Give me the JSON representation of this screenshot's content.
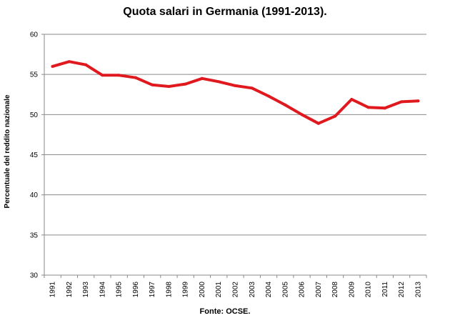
{
  "chart_data": {
    "type": "line",
    "title": "Quota salari in Germania (1991-2013).",
    "xlabel": "",
    "ylabel": "Percentuale del reddito nazionale",
    "source": "Fonte: OCSE.",
    "ylim": [
      30,
      60
    ],
    "yticks": [
      30,
      35,
      40,
      45,
      50,
      55,
      60
    ],
    "grid": true,
    "legend": "none",
    "categories": [
      "1991",
      "1992",
      "1993",
      "1994",
      "1995",
      "1996",
      "1997",
      "1998",
      "1999",
      "2000",
      "2001",
      "2002",
      "2003",
      "2004",
      "2005",
      "2006",
      "2007",
      "2008",
      "2009",
      "2010",
      "2011",
      "2012",
      "2013"
    ],
    "series": [
      {
        "color": "#e0191e",
        "values": [
          56.0,
          56.6,
          56.2,
          54.9,
          54.9,
          54.6,
          53.7,
          53.5,
          53.8,
          54.5,
          54.1,
          53.6,
          53.3,
          52.3,
          51.2,
          50.0,
          48.9,
          49.8,
          51.9,
          50.9,
          50.8,
          51.6,
          51.7
        ]
      }
    ]
  }
}
